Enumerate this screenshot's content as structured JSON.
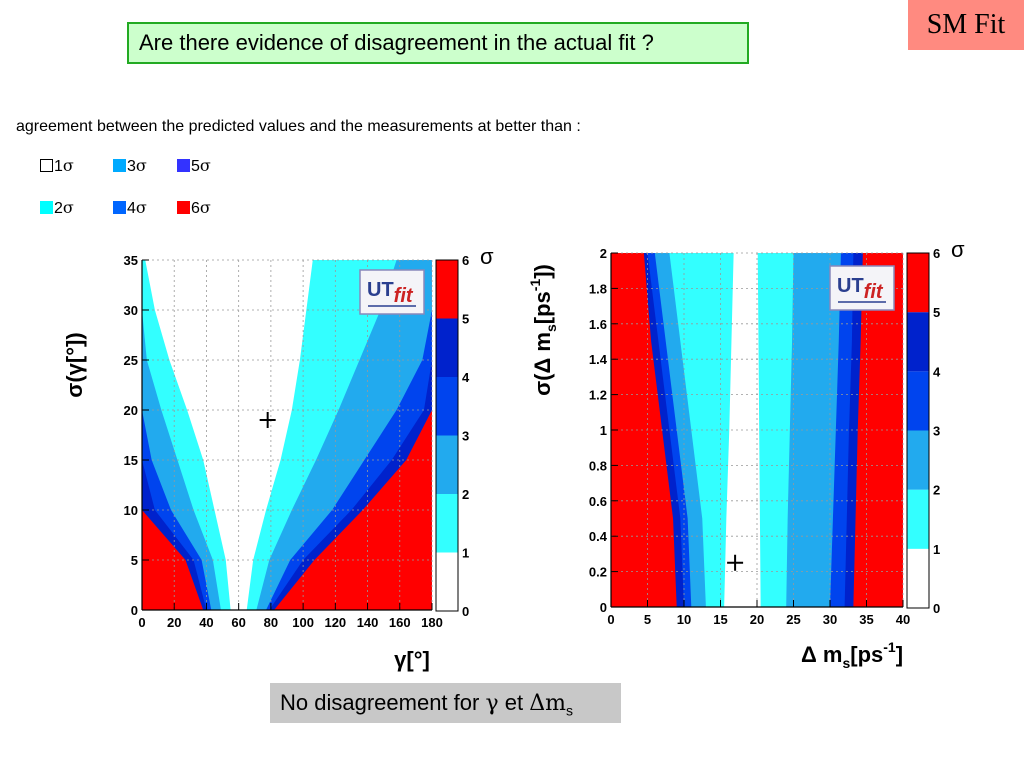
{
  "tag": "SM Fit",
  "question": "Are there evidence of disagreement in the actual fit ?",
  "intro": "agreement between the predicted values and the measurements at better than :",
  "legend": [
    {
      "label": "1",
      "sym": "σ",
      "color": "#ffffff"
    },
    {
      "label": "2",
      "sym": "σ",
      "color": "#00ffff"
    },
    {
      "label": "3",
      "sym": "σ",
      "color": "#00aaff"
    },
    {
      "label": "4",
      "sym": "σ",
      "color": "#0066ff"
    },
    {
      "label": "5",
      "sym": "σ",
      "color": "#3333ff"
    },
    {
      "label": "6",
      "sym": "σ",
      "color": "#ff0000"
    }
  ],
  "colors": {
    "s1": "#ffffff",
    "s2": "#33ffff",
    "s3": "#22aaee",
    "s4": "#0044ee",
    "s5": "#0022cc",
    "s6": "#ff0000",
    "tag_bg": "#ff8a80",
    "question_bg": "#ccffcc",
    "question_border": "#22aa22",
    "footer_bg": "#c8c8c8"
  },
  "logo": {
    "text": "UTfit",
    "part1": "UT",
    "part2": "fit"
  },
  "footer": {
    "prefix": "No disagreement for",
    "gamma": "γ",
    "et": "et",
    "dms": "Δm",
    "sub": "s"
  },
  "chart_data": [
    {
      "type": "heatmap",
      "xlabel": "γ[°]",
      "ylabel": "σ(γ[°])",
      "zlabel": "σ",
      "xlim": [
        0,
        180
      ],
      "ylim": [
        0,
        35
      ],
      "xticks": [
        "0",
        "20",
        "40",
        "60",
        "80",
        "100",
        "120",
        "140",
        "160",
        "180"
      ],
      "yticks": [
        "0",
        "5",
        "10",
        "15",
        "20",
        "25",
        "30",
        "35"
      ],
      "zticks": [
        "0",
        "1",
        "2",
        "3",
        "4",
        "5",
        "6"
      ],
      "marker": {
        "x": 78,
        "y": 19
      },
      "contours": {
        "y": [
          0,
          5,
          10,
          15,
          20,
          25,
          30,
          35
        ],
        "left": [
          [
            55,
            52,
            45,
            38,
            28,
            17,
            8,
            2
          ],
          [
            49,
            44,
            32,
            22,
            12,
            3,
            0,
            0
          ],
          [
            43,
            37,
            18,
            6,
            0,
            0,
            0,
            0
          ],
          [
            40,
            32,
            8,
            0,
            0,
            0,
            0,
            0
          ],
          [
            38,
            27,
            0,
            0,
            0,
            0,
            0,
            0
          ]
        ],
        "right": [
          [
            65,
            69,
            77,
            86,
            93,
            98,
            102,
            106
          ],
          [
            71,
            79,
            93,
            108,
            122,
            135,
            148,
            158
          ],
          [
            77,
            92,
            118,
            138,
            158,
            174,
            180,
            180
          ],
          [
            79,
            100,
            130,
            155,
            175,
            180,
            180,
            180
          ],
          [
            82,
            107,
            137,
            164,
            180,
            180,
            180,
            180
          ]
        ]
      }
    },
    {
      "type": "heatmap",
      "xlabel": "Δ m_s[ps^-1]",
      "ylabel": "σ(Δ m_s[ps^-1])",
      "zlabel": "σ",
      "xlim": [
        0,
        40
      ],
      "ylim": [
        0,
        2
      ],
      "xticks": [
        "0",
        "5",
        "10",
        "15",
        "20",
        "25",
        "30",
        "35",
        "40"
      ],
      "yticks": [
        "0",
        "0.2",
        "0.4",
        "0.6",
        "0.8",
        "1",
        "1.2",
        "1.4",
        "1.6",
        "1.8",
        "2"
      ],
      "zticks": [
        "0",
        "1",
        "2",
        "3",
        "4",
        "5",
        "6"
      ],
      "marker": {
        "x": 17,
        "y": 0.25
      },
      "contours": {
        "y": [
          0,
          0.5,
          1,
          1.5,
          2
        ],
        "left": [
          [
            15.5,
            15.8,
            16.2,
            16.5,
            16.8
          ],
          [
            13,
            12.5,
            11,
            9.5,
            8
          ],
          [
            11,
            10.5,
            9,
            7.5,
            6
          ],
          [
            10,
            9.5,
            8,
            6.5,
            5
          ],
          [
            9,
            8.5,
            7,
            5.5,
            4.5
          ]
        ],
        "right": [
          [
            20.5,
            20.4,
            20.3,
            20.2,
            20.1
          ],
          [
            24,
            24.2,
            24.5,
            24.8,
            25
          ],
          [
            30,
            30.4,
            30.8,
            31.2,
            31.5
          ],
          [
            32,
            32.3,
            32.6,
            33,
            33.2
          ],
          [
            33.2,
            33.5,
            33.8,
            34.2,
            34.5
          ]
        ]
      }
    }
  ]
}
